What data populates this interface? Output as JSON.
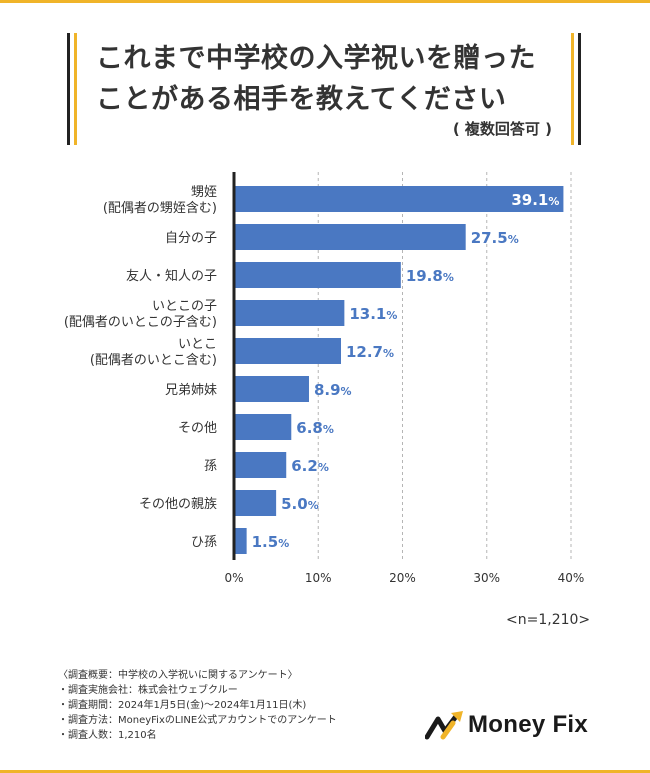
{
  "title": {
    "line1": "これまで中学校の入学祝いを贈った",
    "line2": "ことがある相手を教えてください",
    "subtitle": "( 複数回答可 )"
  },
  "chart_data": {
    "type": "bar",
    "orientation": "horizontal",
    "categories": [
      [
        "甥姪",
        "(配偶者の甥姪含む)"
      ],
      [
        "自分の子"
      ],
      [
        "友人・知人の子"
      ],
      [
        "いとこの子",
        "(配偶者のいとこの子含む)"
      ],
      [
        "いとこ",
        "(配偶者のいとこ含む)"
      ],
      [
        "兄弟姉妹"
      ],
      [
        "その他"
      ],
      [
        "孫"
      ],
      [
        "その他の親族"
      ],
      [
        "ひ孫"
      ]
    ],
    "values": [
      39.1,
      27.5,
      19.8,
      13.1,
      12.7,
      8.9,
      6.8,
      6.2,
      5.0,
      1.5
    ],
    "value_labels": [
      "39.1",
      "27.5",
      "19.8",
      "13.1",
      "12.7",
      "8.9",
      "6.8",
      "6.2",
      "5.0",
      "1.5"
    ],
    "value_suffix": "%",
    "xlim": [
      0,
      40
    ],
    "xticks": [
      0,
      10,
      20,
      30,
      40
    ],
    "xtick_labels": [
      "0%",
      "10%",
      "20%",
      "30%",
      "40%"
    ],
    "grid": "vertical-dashed",
    "bar_color": "#4a78c2",
    "label_inside_color": "#ffffff",
    "label_outside_color": "#4a78c2"
  },
  "sample_size": "<n=1,210>",
  "notes": [
    "〈調査概要：中学校の入学祝いに関するアンケート〉",
    "・調査実施会社：株式会社ウェブクルー",
    "・調査期間：2024年1月5日(金)～2024年1月11日(木)",
    "・調査方法：MoneyFixのLINE公式アカウントでのアンケート",
    "・調査人数：1,210名"
  ],
  "logo": {
    "text": "Money Fix",
    "accent": "#f0b429"
  }
}
